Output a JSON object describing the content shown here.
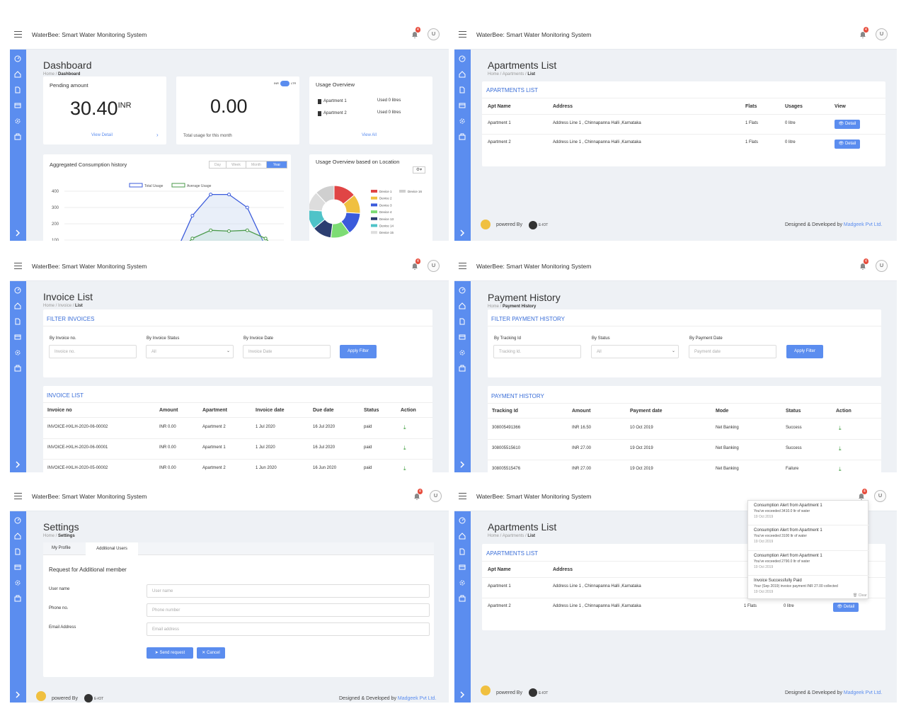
{
  "app_title": "WaterBee: Smart Water Monitoring System",
  "notification_count": "4",
  "avatar_letter": "U",
  "colors": {
    "accent": "#5b8def",
    "badge": "#e74c3c",
    "sidebar": "#5b8def"
  },
  "sidebar_icons": [
    "dashboard-icon",
    "home-icon",
    "document-icon",
    "card-icon",
    "gear-icon",
    "briefcase-icon",
    "chevron-right-icon"
  ],
  "dashboard": {
    "title": "Dashboard",
    "crumb_home": "Home /",
    "crumb_current": "Dashboard",
    "pending_label": "Pending amount",
    "pending_value": "30.40",
    "pending_unit": "INR",
    "view_detail": "View Detail",
    "total_value": "0.00",
    "total_caption": "Total usage for this month",
    "currency_toggle_left": "INR",
    "currency_toggle_right": "LTR",
    "usage_overview_title": "Usage Overview",
    "usage_rows": [
      {
        "name": "Apartment 1",
        "value": "Used 0 litres"
      },
      {
        "name": "Apartment 2",
        "value": "Used 0 litres"
      }
    ],
    "view_all": "View All",
    "agg_title": "Aggregated Consumption history",
    "period_tabs": [
      "Day",
      "Week",
      "Month",
      "Year"
    ],
    "active_period": "Year",
    "location_title": "Usage Overview based on Location",
    "chart_data": [
      {
        "type": "line",
        "title": "",
        "legend": [
          "Total Usage",
          "Average Usage"
        ],
        "y_ticks": [
          "400",
          "300",
          "200",
          "100"
        ],
        "series": [
          {
            "name": "Total Usage",
            "values": [
              0,
              0,
              0,
              0,
              0,
              0,
              0,
              250,
              380,
              380,
              300,
              60,
              0
            ]
          },
          {
            "name": "Average Usage",
            "values": [
              0,
              0,
              0,
              0,
              0,
              0,
              0,
              110,
              160,
              155,
              160,
              110,
              0
            ]
          }
        ]
      },
      {
        "type": "pie",
        "labels": [
          "Device 1",
          "Device 2",
          "Device 3",
          "Device 4",
          "Device 13",
          "Device 14",
          "Device 15",
          "Device 16"
        ],
        "colors": [
          "#e04545",
          "#f0c040",
          "#3b5bdb",
          "#7ddc74",
          "#2c3e70",
          "#4fc3c8",
          "#dddddd",
          "#cfcfcf"
        ],
        "values": [
          14,
          12,
          14,
          12,
          12,
          12,
          12,
          12
        ]
      }
    ]
  },
  "apartments": {
    "title": "Apartments List",
    "crumb_home": "Home /",
    "crumb_mid": "Apartments /",
    "crumb_current": "List",
    "section": "APARTMENTS LIST",
    "headers": [
      "Apt Name",
      "Address",
      "Flats",
      "Usages",
      "View"
    ],
    "rows": [
      {
        "name": "Apartment 1",
        "address": "Address Line 1 , Chinnapanna Halli ,Karnataka",
        "flats": "1 Flats",
        "usage": "0 litre",
        "action": "Detail"
      },
      {
        "name": "Apartment 2",
        "address": "Address Line 1 , Chinnapanna Halli ,Karnataka",
        "flats": "1 Flats",
        "usage": "0 litre",
        "action": "Detail"
      }
    ],
    "powered_by": "powered By",
    "iot_brand": "E-IOT",
    "designed_by": "Designed & Developed by",
    "company": "Madgeek Pvt Ltd."
  },
  "invoices": {
    "title": "Invoice List",
    "crumb_home": "Home /",
    "crumb_mid": "Invoice /",
    "crumb_current": "List",
    "filter_section": "FILTER INVOICES",
    "filters": [
      {
        "label": "By Invoice no.",
        "placeholder": "Invoice no."
      },
      {
        "label": "By Invoice Status",
        "placeholder": "All"
      },
      {
        "label": "By Invoice Date",
        "placeholder": "Invoice Date"
      }
    ],
    "apply": "Apply Filter",
    "list_section": "INVOICE LIST",
    "headers": [
      "Invoice no",
      "Amount",
      "Apartment",
      "Invoice date",
      "Due date",
      "Status",
      "Action"
    ],
    "rows": [
      [
        "INVOICE-HXLH-2020-06-00002",
        "INR 0.00",
        "Apartment 2",
        "1 Jul 2020",
        "16 Jul 2020",
        "paid"
      ],
      [
        "INVOICE-HXLH-2020-06-00001",
        "INR 0.00",
        "Apartment 1",
        "1 Jul 2020",
        "16 Jul 2020",
        "paid"
      ],
      [
        "INVOICE-HXLH-2020-05-00002",
        "INR 0.00",
        "Apartment 2",
        "1 Jun 2020",
        "16 Jun 2020",
        "paid"
      ]
    ]
  },
  "payments": {
    "title": "Payment History",
    "crumb_home": "Home /",
    "crumb_current": "Payment History",
    "filter_section": "FILTER PAYMENT HISTORY",
    "filters": [
      {
        "label": "By Tracking Id",
        "placeholder": "Tracking Id."
      },
      {
        "label": "By Status",
        "placeholder": "All"
      },
      {
        "label": "By Payment Date",
        "placeholder": "Payment date"
      }
    ],
    "apply": "Apply Filter",
    "list_section": "PAYMENT HISTORY",
    "headers": [
      "Tracking Id",
      "Amount",
      "Payment date",
      "Mode",
      "Status",
      "Action"
    ],
    "rows": [
      [
        "308005491366",
        "INR 16.50",
        "10 Oct 2019",
        "Net Banking",
        "Success"
      ],
      [
        "308005515610",
        "INR 27.00",
        "19 Oct 2019",
        "Net Banking",
        "Success"
      ],
      [
        "308005515476",
        "INR 27.00",
        "19 Oct 2019",
        "Net Banking",
        "Failure"
      ]
    ]
  },
  "settings": {
    "title": "Settings",
    "crumb_home": "Home /",
    "crumb_current": "Settings",
    "tabs": [
      "My Profile",
      "Additional Users"
    ],
    "form_title": "Request for Additional member",
    "fields": [
      {
        "label": "User name",
        "placeholder": "User name"
      },
      {
        "label": "Phone no.",
        "placeholder": "Phone number"
      },
      {
        "label": "Email Address",
        "placeholder": "Email address"
      }
    ],
    "send": "Send request",
    "cancel": "Cancel"
  },
  "notifications": [
    {
      "title": "Consumption Alert from Apartment 1",
      "msg": "You've exceeded 3410.0 ltr of water",
      "date": "19 Oct 2019"
    },
    {
      "title": "Consumption Alert from Apartment 1",
      "msg": "You've exceeded 3100 ltr of water",
      "date": "19 Oct 2019"
    },
    {
      "title": "Consumption Alert from Apartment 1",
      "msg": "You've exceeded 2790.0 ltr of water",
      "date": "19 Oct 2019"
    },
    {
      "title": "Invoice Successfully Paid",
      "msg": "Your (Sep 2019) invoice payment INR 27.00 collected",
      "date": "19 Oct 2019"
    }
  ],
  "notifications_clear": "Clear"
}
